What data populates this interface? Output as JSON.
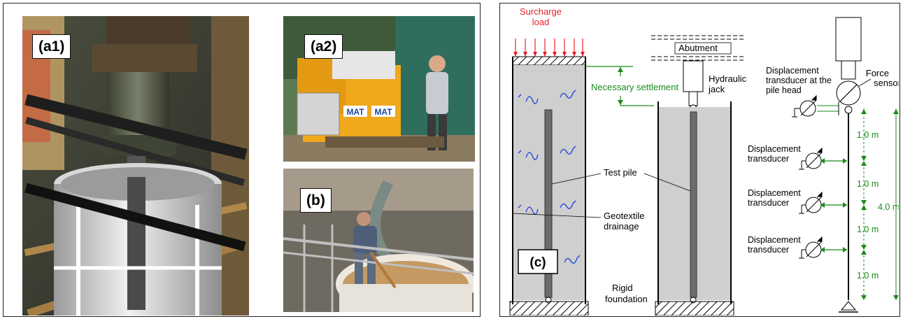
{
  "photos": {
    "a1": {
      "label": "(a1)"
    },
    "a2": {
      "label": "(a2)",
      "machine_text_left": "MAT",
      "machine_text_right": "MAT"
    },
    "b": {
      "label": "(b)"
    }
  },
  "diagram": {
    "label": "(c)",
    "surcharge_load": [
      "Surcharge",
      "load"
    ],
    "necessary_settlement": "Necessary settlement",
    "abutment": "Abutment",
    "hydraulic_jack": [
      "Hydraulic",
      "jack"
    ],
    "force_sensor": [
      "Force",
      "sensor"
    ],
    "displacement_pile_head": [
      "Displacement",
      "transducer at the",
      "pile head"
    ],
    "displacement_transducer": [
      "Displacement",
      "transducer"
    ],
    "test_pile": "Test pile",
    "geotextile_drainage": [
      "Geotextile",
      "drainage"
    ],
    "rigid_foundation": [
      "Rigid",
      "foundation"
    ],
    "spacing_labels": [
      "1.0 m",
      "1.0 m",
      "1.0 m",
      "1.0 m"
    ],
    "total_length": "4.0 m",
    "colors": {
      "load": "#e8202a",
      "dimension": "#1a8a1a",
      "water": "#1f3fd8",
      "soil": "#cfcfcf"
    }
  }
}
